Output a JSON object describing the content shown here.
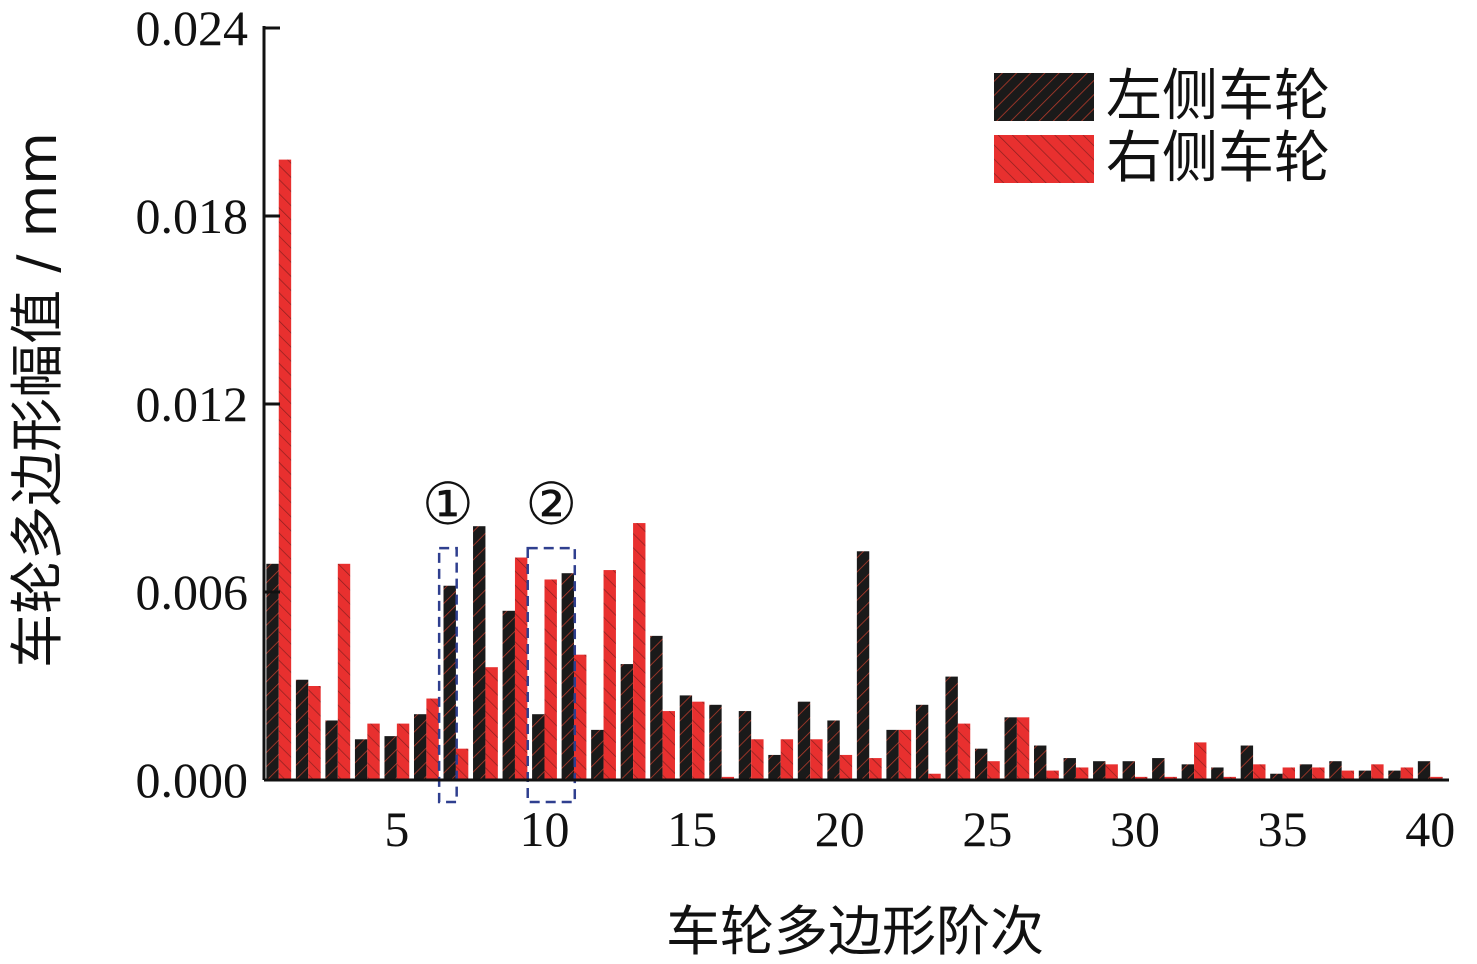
{
  "chart_data": {
    "type": "bar",
    "xlabel": "车轮多边形阶次",
    "ylabel": "车轮多边形幅值 / mm",
    "ylim": [
      0,
      0.024
    ],
    "yticks": [
      0.0,
      0.006,
      0.012,
      0.018,
      0.024
    ],
    "ytick_labels": [
      "0.000",
      "0.006",
      "0.012",
      "0.018",
      "0.024"
    ],
    "xticks": [
      5,
      10,
      15,
      20,
      25,
      30,
      35,
      40
    ],
    "xtick_labels": [
      "5",
      "10",
      "15",
      "20",
      "25",
      "30",
      "35",
      "40"
    ],
    "legend_position": "top-right",
    "categories": [
      1,
      2,
      3,
      4,
      5,
      6,
      7,
      8,
      9,
      10,
      11,
      12,
      13,
      14,
      15,
      16,
      17,
      18,
      19,
      20,
      21,
      22,
      23,
      24,
      25,
      26,
      27,
      28,
      29,
      30,
      31,
      32,
      33,
      34,
      35,
      36,
      37,
      38,
      39,
      40
    ],
    "series": [
      {
        "name": "左侧车轮",
        "color": "#1a1a1a",
        "hatch_color": "#c0392b",
        "values": [
          0.0069,
          0.0032,
          0.0019,
          0.0013,
          0.0014,
          0.0021,
          0.0062,
          0.0081,
          0.0054,
          0.0021,
          0.0066,
          0.0016,
          0.0037,
          0.0046,
          0.0027,
          0.0024,
          0.0022,
          0.0008,
          0.0025,
          0.0019,
          0.0073,
          0.0016,
          0.0024,
          0.0033,
          0.001,
          0.002,
          0.0011,
          0.0007,
          0.0006,
          0.0006,
          0.0007,
          0.0005,
          0.0004,
          0.0011,
          0.0002,
          0.0005,
          0.0006,
          0.0003,
          0.0003,
          0.0006
        ]
      },
      {
        "name": "右侧车轮",
        "color": "#e8302f",
        "hatch_color": "#7a1a1a",
        "values": [
          0.0198,
          0.003,
          0.0069,
          0.0018,
          0.0018,
          0.0026,
          0.001,
          0.0036,
          0.0071,
          0.0064,
          0.004,
          0.0067,
          0.0082,
          0.0022,
          0.0025,
          0.0001,
          0.0013,
          0.0013,
          0.0013,
          0.0008,
          0.0007,
          0.0016,
          0.0002,
          0.0018,
          0.0006,
          0.002,
          0.0003,
          0.0004,
          0.0005,
          0.0001,
          0.0001,
          0.0012,
          0.0001,
          0.0005,
          0.0004,
          0.0004,
          0.0003,
          0.0005,
          0.0004,
          0.0001
        ]
      }
    ],
    "annotations": [
      {
        "label": "①",
        "orders": [
          7,
          7
        ]
      },
      {
        "label": "②",
        "orders": [
          10,
          11
        ]
      }
    ]
  },
  "colors": {
    "axis": "#111111",
    "annotation_box": "#2f3f8f"
  }
}
